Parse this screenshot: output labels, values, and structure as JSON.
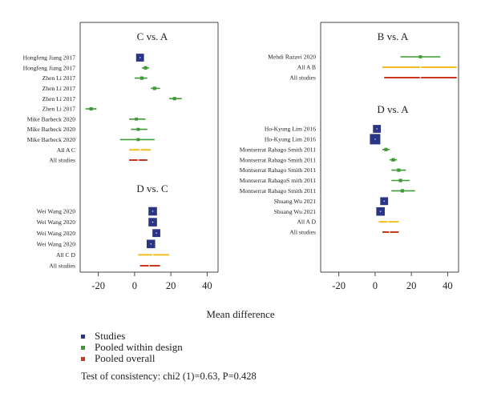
{
  "colors": {
    "studies": "#2b3585",
    "pooled_within": "#3f9a35",
    "pooled_overall": "#c9361b",
    "all_design": "#f3bd1d",
    "axis": "#444444",
    "gridline": "#bbbbbb"
  },
  "chart_data": {
    "type": "forest",
    "x_axis": {
      "label": "Mean difference",
      "ticks": [
        "-20",
        "0",
        "20",
        "40"
      ],
      "tick_values": [
        -20,
        0,
        20,
        40
      ],
      "xlim": [
        -30,
        46
      ]
    },
    "panels": [
      {
        "title": "C vs. A",
        "column": "left",
        "rows": [
          {
            "label": "Hongfeng Jiang 2017",
            "kind": "study",
            "est": 3,
            "lo": 2,
            "hi": 4,
            "weight": 0.6
          },
          {
            "label": "Hongfeng Jiang 2017",
            "kind": "pooled",
            "est": 6,
            "lo": 4,
            "hi": 8,
            "weight": 0.3
          },
          {
            "label": "Zhen Li 2017",
            "kind": "pooled",
            "est": 4,
            "lo": 0,
            "hi": 7,
            "weight": 0.3
          },
          {
            "label": "Zhen Li 2017",
            "kind": "pooled",
            "est": 11,
            "lo": 9,
            "hi": 14,
            "weight": 0.3
          },
          {
            "label": "Zhen Li 2017",
            "kind": "pooled",
            "est": 22,
            "lo": 19,
            "hi": 26,
            "weight": 0.3
          },
          {
            "label": "Zhen Li 2017",
            "kind": "pooled",
            "est": -24,
            "lo": -27,
            "hi": -21,
            "weight": 0.3
          },
          {
            "label": "Mike Barbeck 2020",
            "kind": "pooled",
            "est": 1,
            "lo": -3,
            "hi": 6,
            "weight": 0.2
          },
          {
            "label": "Mike Barbeck 2020",
            "kind": "pooled",
            "est": 2,
            "lo": -2,
            "hi": 7,
            "weight": 0.2
          },
          {
            "label": "Mike Barbeck 2020",
            "kind": "pooled",
            "est": 2,
            "lo": -8,
            "hi": 11,
            "weight": 0.2
          },
          {
            "label": "All A C",
            "kind": "design",
            "est": 3,
            "lo": -3,
            "hi": 9
          },
          {
            "label": "All studies",
            "kind": "overall",
            "est": 2,
            "lo": -3,
            "hi": 7
          }
        ]
      },
      {
        "title": "D vs. C",
        "column": "left",
        "rows": [
          {
            "label": "Wei Wang 2020",
            "kind": "study",
            "est": 10,
            "lo": 9,
            "hi": 11,
            "weight": 0.7
          },
          {
            "label": "Wei Wang 2020",
            "kind": "study",
            "est": 10,
            "lo": 9,
            "hi": 11,
            "weight": 0.7
          },
          {
            "label": "Wei Wang 2020",
            "kind": "study",
            "est": 12,
            "lo": 11,
            "hi": 13,
            "weight": 0.6
          },
          {
            "label": "Wei Wang 2020",
            "kind": "study",
            "est": 9,
            "lo": 8,
            "hi": 10,
            "weight": 0.7
          },
          {
            "label": "All C D",
            "kind": "design",
            "est": 10,
            "lo": 2,
            "hi": 19
          },
          {
            "label": "All studies",
            "kind": "overall",
            "est": 8,
            "lo": 3,
            "hi": 14
          }
        ]
      },
      {
        "title": "B vs. A",
        "column": "right",
        "rows": [
          {
            "label": "Mehdi Razavi 2020",
            "kind": "pooled",
            "est": 25,
            "lo": 14,
            "hi": 36,
            "weight": 0.2
          },
          {
            "label": "All A B",
            "kind": "design",
            "est": 25,
            "lo": 4,
            "hi": 45
          },
          {
            "label": "All studies",
            "kind": "overall",
            "est": 25,
            "lo": 5,
            "hi": 45
          }
        ]
      },
      {
        "title": "D vs. A",
        "column": "right",
        "rows": [
          {
            "label": "Ho-Kyung Lim 2016",
            "kind": "study",
            "est": 1,
            "lo": 0,
            "hi": 2,
            "weight": 0.6
          },
          {
            "label": "Ho-Kyung Lim 2016",
            "kind": "study",
            "est": 0,
            "lo": -2,
            "hi": 2,
            "weight": 1.0
          },
          {
            "label": "Montserrat Rabago Smith 2011",
            "kind": "pooled",
            "est": 6,
            "lo": 4,
            "hi": 8,
            "weight": 0.3
          },
          {
            "label": "Montserrat Rabago Smith 2011",
            "kind": "pooled",
            "est": 10,
            "lo": 8,
            "hi": 12,
            "weight": 0.3
          },
          {
            "label": "Montserrat Rabago Smith 2011",
            "kind": "pooled",
            "est": 13,
            "lo": 9,
            "hi": 17,
            "weight": 0.3
          },
          {
            "label": "Montserrat RabagoS mith 2011",
            "kind": "pooled",
            "est": 14,
            "lo": 9,
            "hi": 19,
            "weight": 0.3
          },
          {
            "label": "Montserrat Rabago Smith 2011",
            "kind": "pooled",
            "est": 15,
            "lo": 9,
            "hi": 22,
            "weight": 0.3
          },
          {
            "label": "Shuang Wu 2021",
            "kind": "study",
            "est": 5,
            "lo": 4,
            "hi": 6,
            "weight": 0.6
          },
          {
            "label": "Shuang Wu 2021",
            "kind": "study",
            "est": 3,
            "lo": 2,
            "hi": 4,
            "weight": 0.7
          },
          {
            "label": "All A D",
            "kind": "design",
            "est": 7,
            "lo": 2,
            "hi": 13
          },
          {
            "label": "All studies",
            "kind": "overall",
            "est": 8,
            "lo": 4,
            "hi": 13
          }
        ]
      }
    ],
    "legend": [
      {
        "label": "Studies",
        "color_key": "studies"
      },
      {
        "label": "Pooled within design",
        "color_key": "pooled_within"
      },
      {
        "label": "Pooled overall",
        "color_key": "pooled_overall"
      }
    ],
    "footer": "Test of consistency: chi2 (1)=0.63, P=0.428"
  }
}
